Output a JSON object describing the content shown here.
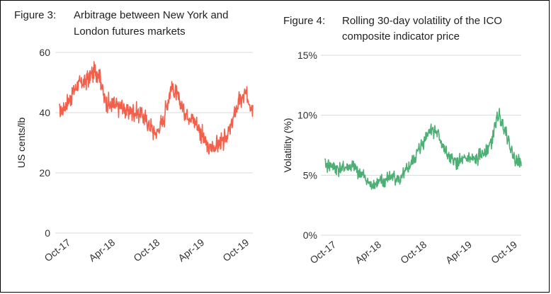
{
  "chart_data": [
    {
      "type": "line",
      "figure_label": "Figure 3:",
      "title_lines": [
        "Arbitrage between New York and",
        "London futures markets"
      ],
      "ylabel": "US cents/lb",
      "ylim": [
        0,
        60
      ],
      "yticks": [
        "0",
        "20",
        "40",
        "60"
      ],
      "x_tick_labels": [
        "Oct-17",
        "Apr-18",
        "Oct-18",
        "Apr-19",
        "Oct-19"
      ],
      "x_range": [
        "2017-10",
        "2019-12"
      ],
      "grid": true,
      "color": "#f2604b",
      "series": [
        {
          "x": [
            "2017-10-01",
            "2017-11-01",
            "2017-12-01",
            "2018-01-01",
            "2018-02-01",
            "2018-03-01",
            "2018-03-15",
            "2018-04-01",
            "2018-05-01",
            "2018-06-01",
            "2018-07-01",
            "2018-08-01",
            "2018-09-01",
            "2018-10-01",
            "2018-11-01",
            "2018-12-01",
            "2019-01-01",
            "2019-02-01",
            "2019-03-01",
            "2019-04-01",
            "2019-05-01",
            "2019-06-01",
            "2019-07-01",
            "2019-08-01",
            "2019-09-01",
            "2019-10-01",
            "2019-11-01",
            "2019-12-01"
          ],
          "values": [
            40,
            43,
            48,
            50,
            52,
            54,
            53,
            45,
            42,
            42,
            41,
            40,
            40,
            36,
            33,
            38,
            49,
            44,
            40,
            38,
            34,
            28,
            29,
            30,
            35,
            43,
            46,
            42
          ]
        }
      ]
    },
    {
      "type": "line",
      "figure_label": "Figure 4:",
      "title_lines": [
        "Rolling 30-day volatility of the ICO",
        "composite indicator price"
      ],
      "ylabel": "Volatility (%)",
      "ylim": [
        0,
        15
      ],
      "yticks": [
        "0%",
        "5%",
        "10%",
        "15%"
      ],
      "x_tick_labels": [
        "Oct-17",
        "Apr-18",
        "Oct-18",
        "Apr-19",
        "Oct-19"
      ],
      "x_range": [
        "2017-10",
        "2019-12"
      ],
      "grid": true,
      "color": "#4caf73",
      "series": [
        {
          "x": [
            "2017-10-01",
            "2017-11-01",
            "2017-12-01",
            "2018-01-01",
            "2018-02-01",
            "2018-03-01",
            "2018-04-01",
            "2018-05-01",
            "2018-06-01",
            "2018-07-01",
            "2018-08-01",
            "2018-09-01",
            "2018-10-01",
            "2018-11-01",
            "2018-12-01",
            "2019-01-01",
            "2019-02-01",
            "2019-03-01",
            "2019-04-01",
            "2019-05-01",
            "2019-06-01",
            "2019-07-01",
            "2019-08-01",
            "2019-08-20",
            "2019-09-01",
            "2019-10-01",
            "2019-11-01",
            "2019-12-01"
          ],
          "values": [
            5.9,
            5.8,
            5.5,
            5.7,
            5.6,
            5.0,
            4.2,
            4.3,
            4.6,
            4.9,
            4.6,
            5.5,
            6.6,
            7.8,
            9.0,
            8.4,
            6.8,
            6.2,
            6.1,
            6.4,
            6.2,
            6.9,
            7.7,
            9.4,
            10.0,
            8.6,
            6.4,
            6.0
          ]
        }
      ]
    }
  ]
}
